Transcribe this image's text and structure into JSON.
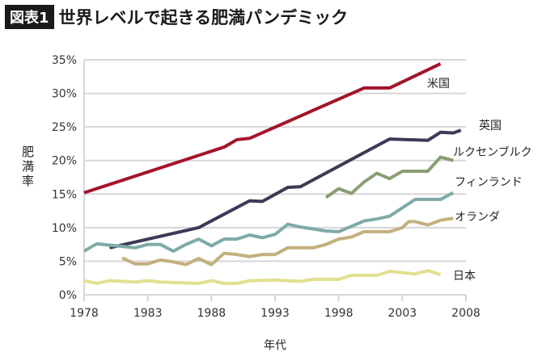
{
  "header": {
    "badge": "図表1",
    "title": "世界レベルで起きる肥満パンデミック"
  },
  "chart_data": {
    "type": "line",
    "title": "世界レベルで起きる肥満パンデミック",
    "xlabel": "年代",
    "ylabel": "肥満率",
    "xlim": [
      1978,
      2008
    ],
    "ylim": [
      0,
      35
    ],
    "xticks": [
      "1978",
      "1983",
      "1988",
      "1993",
      "1998",
      "2003",
      "2008"
    ],
    "yticks": [
      "0%",
      "5%",
      "10%",
      "15%",
      "20%",
      "25%",
      "30%",
      "35%"
    ],
    "grid": true,
    "series": [
      {
        "name": "米国",
        "color": "#a3142a",
        "x": [
          1978,
          1989,
          1990,
          1991,
          2000,
          2002,
          2006
        ],
        "y": [
          15.2,
          22.0,
          23.1,
          23.3,
          30.8,
          30.8,
          34.4
        ]
      },
      {
        "name": "英国",
        "color": "#3b3a58",
        "x": [
          1980,
          1987,
          1991,
          1992,
          1994,
          1995,
          2002,
          2005,
          2006,
          2007,
          2007.6
        ],
        "y": [
          7.0,
          10.0,
          14.0,
          13.9,
          16.0,
          16.1,
          23.2,
          23.0,
          24.2,
          24.1,
          24.5
        ]
      },
      {
        "name": "ルクセンブルク",
        "color": "#8a9e72",
        "x": [
          1997,
          1998,
          1999,
          2000,
          2001,
          2002,
          2003,
          2005,
          2006,
          2007
        ],
        "y": [
          14.5,
          15.8,
          15.1,
          16.8,
          18.1,
          17.3,
          18.4,
          18.4,
          20.5,
          20.0
        ]
      },
      {
        "name": "フィンランド",
        "color": "#7eaaa8",
        "x": [
          1978,
          1979,
          1980,
          1981,
          1982,
          1983,
          1984,
          1985,
          1986,
          1987,
          1988,
          1989,
          1990,
          1991,
          1992,
          1993,
          1994,
          1995,
          1997,
          1998,
          2000,
          2001,
          2002,
          2004,
          2006,
          2007
        ],
        "y": [
          6.5,
          7.6,
          7.4,
          7.2,
          7.0,
          7.5,
          7.5,
          6.5,
          7.5,
          8.3,
          7.3,
          8.3,
          8.3,
          8.9,
          8.5,
          9.0,
          10.5,
          10.1,
          9.5,
          9.4,
          11.0,
          11.3,
          11.7,
          14.2,
          14.2,
          15.2
        ]
      },
      {
        "name": "オランダ",
        "color": "#c2b07e",
        "x": [
          1981,
          1982,
          1983,
          1984,
          1985,
          1986,
          1987,
          1988,
          1989,
          1990,
          1991,
          1992,
          1993,
          1994,
          1996,
          1997,
          1998,
          1999,
          2000,
          2002,
          2003,
          2003.5,
          2004,
          2005,
          2006,
          2007
        ],
        "y": [
          5.5,
          4.6,
          4.6,
          5.2,
          4.9,
          4.5,
          5.4,
          4.5,
          6.2,
          6.0,
          5.7,
          6.0,
          6.0,
          7.0,
          7.0,
          7.5,
          8.3,
          8.6,
          9.4,
          9.4,
          10.0,
          10.9,
          10.9,
          10.4,
          11.1,
          11.4
        ]
      },
      {
        "name": "日本",
        "color": "#e0e090",
        "x": [
          1978,
          1979,
          1980,
          1981,
          1982,
          1983,
          1984,
          1987,
          1988,
          1989,
          1990,
          1991,
          1993,
          1995,
          1996,
          1998,
          1999,
          2001,
          2002,
          2004,
          2005,
          2006
        ],
        "y": [
          2.1,
          1.7,
          2.1,
          2.0,
          1.9,
          2.1,
          1.9,
          1.7,
          2.1,
          1.7,
          1.7,
          2.1,
          2.2,
          2.0,
          2.3,
          2.3,
          2.9,
          2.9,
          3.5,
          3.1,
          3.6,
          3.0
        ]
      }
    ]
  }
}
